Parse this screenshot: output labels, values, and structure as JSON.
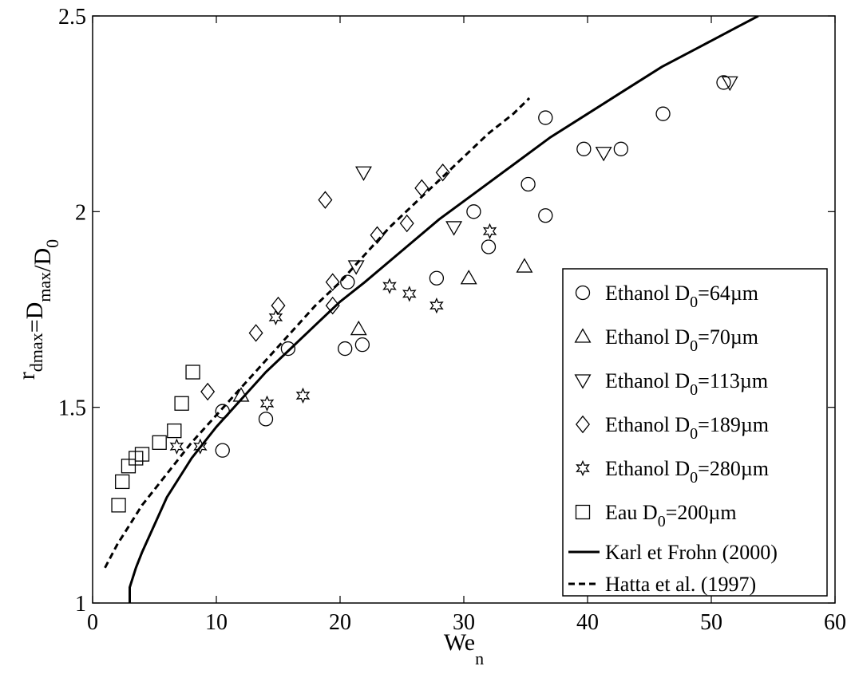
{
  "chart_data": {
    "type": "scatter",
    "x_label": "We",
    "x_label_sub": "n",
    "y_label": {
      "parts": [
        {
          "t": "r",
          "sub": "dmax"
        },
        {
          "t": "=D",
          "sub": "max"
        },
        {
          "t": "/D",
          "sub": "0"
        }
      ]
    },
    "xlim": [
      0,
      60
    ],
    "ylim": [
      1,
      2.5
    ],
    "x_ticks": [
      0,
      10,
      20,
      30,
      40,
      50,
      60
    ],
    "y_ticks": [
      1,
      1.5,
      2,
      2.5
    ],
    "y_tick_labels": [
      "1",
      "1.5",
      "2",
      "2.5"
    ],
    "grid": false,
    "legend_position": "bottom-right",
    "series": [
      {
        "name": "Ethanol D0=64µm",
        "legend": {
          "pre": "Ethanol D",
          "sub": "0",
          "post": "=64µm"
        },
        "marker": "circle",
        "points": [
          [
            10.5,
            1.39
          ],
          [
            10.5,
            1.49
          ],
          [
            14.0,
            1.47
          ],
          [
            15.8,
            1.65
          ],
          [
            20.4,
            1.65
          ],
          [
            20.6,
            1.82
          ],
          [
            21.8,
            1.66
          ],
          [
            27.8,
            1.83
          ],
          [
            30.8,
            2.0
          ],
          [
            32.0,
            1.91
          ],
          [
            35.2,
            2.07
          ],
          [
            36.6,
            1.99
          ],
          [
            36.6,
            2.24
          ],
          [
            39.7,
            2.16
          ],
          [
            42.7,
            2.16
          ],
          [
            46.1,
            2.25
          ],
          [
            51.0,
            2.33
          ]
        ]
      },
      {
        "name": "Ethanol D0=70µm",
        "legend": {
          "pre": "Ethanol D",
          "sub": "0",
          "post": "=70µm"
        },
        "marker": "triangle-up",
        "points": [
          [
            12.0,
            1.53
          ],
          [
            21.5,
            1.7
          ],
          [
            30.4,
            1.83
          ],
          [
            34.9,
            1.86
          ]
        ]
      },
      {
        "name": "Ethanol D0=113µm",
        "legend": {
          "pre": "Ethanol D",
          "sub": "0",
          "post": "=113µm"
        },
        "marker": "triangle-down",
        "points": [
          [
            21.3,
            1.86
          ],
          [
            21.9,
            2.1
          ],
          [
            29.2,
            1.96
          ],
          [
            41.3,
            2.15
          ],
          [
            51.5,
            2.33
          ]
        ]
      },
      {
        "name": "Ethanol D0=189µm",
        "legend": {
          "pre": "Ethanol D",
          "sub": "0",
          "post": "=189µm"
        },
        "marker": "diamond",
        "points": [
          [
            9.3,
            1.54
          ],
          [
            13.2,
            1.69
          ],
          [
            15.0,
            1.76
          ],
          [
            18.8,
            2.03
          ],
          [
            19.4,
            1.76
          ],
          [
            19.4,
            1.82
          ],
          [
            23.0,
            1.94
          ],
          [
            25.4,
            1.97
          ],
          [
            26.6,
            2.06
          ],
          [
            28.3,
            2.1
          ]
        ]
      },
      {
        "name": "Ethanol D0=280µm",
        "legend": {
          "pre": "Ethanol D",
          "sub": "0",
          "post": "=280µm"
        },
        "marker": "star6",
        "points": [
          [
            6.8,
            1.4
          ],
          [
            8.7,
            1.4
          ],
          [
            14.1,
            1.51
          ],
          [
            14.8,
            1.73
          ],
          [
            17.0,
            1.53
          ],
          [
            24.0,
            1.81
          ],
          [
            25.6,
            1.79
          ],
          [
            27.8,
            1.76
          ],
          [
            32.1,
            1.95
          ]
        ]
      },
      {
        "name": "Eau D0=200µm",
        "legend": {
          "pre": "Eau D",
          "sub": "0",
          "post": "=200µm"
        },
        "marker": "square",
        "points": [
          [
            2.1,
            1.25
          ],
          [
            2.4,
            1.31
          ],
          [
            2.9,
            1.35
          ],
          [
            3.5,
            1.37
          ],
          [
            4.0,
            1.38
          ],
          [
            5.4,
            1.41
          ],
          [
            6.6,
            1.44
          ],
          [
            7.2,
            1.51
          ],
          [
            8.1,
            1.59
          ]
        ]
      },
      {
        "name": "Karl et Frohn (2000)",
        "legend": {
          "pre": "Karl et Frohn (2000)"
        },
        "line": "solid",
        "points": [
          [
            3.0,
            1.0
          ],
          [
            3.0,
            1.04
          ],
          [
            3.5,
            1.09
          ],
          [
            4.0,
            1.13
          ],
          [
            5.0,
            1.2
          ],
          [
            6.0,
            1.27
          ],
          [
            7.0,
            1.32
          ],
          [
            8.0,
            1.37
          ],
          [
            10.0,
            1.45
          ],
          [
            12.0,
            1.52
          ],
          [
            14.0,
            1.59
          ],
          [
            16.0,
            1.65
          ],
          [
            18.0,
            1.71
          ],
          [
            20.0,
            1.77
          ],
          [
            22.0,
            1.82
          ],
          [
            25.0,
            1.9
          ],
          [
            28.0,
            1.98
          ],
          [
            31.0,
            2.05
          ],
          [
            34.0,
            2.12
          ],
          [
            37.0,
            2.19
          ],
          [
            40.0,
            2.25
          ],
          [
            43.0,
            2.31
          ],
          [
            46.0,
            2.37
          ],
          [
            49.0,
            2.42
          ],
          [
            52.0,
            2.47
          ],
          [
            53.8,
            2.5
          ]
        ]
      },
      {
        "name": "Hatta et al. (1997)",
        "legend": {
          "pre": "Hatta et al. (1997)"
        },
        "line": "dashed",
        "points": [
          [
            1.0,
            1.09
          ],
          [
            2.0,
            1.15
          ],
          [
            3.0,
            1.2
          ],
          [
            4.0,
            1.25
          ],
          [
            5.0,
            1.29
          ],
          [
            6.0,
            1.33
          ],
          [
            8.0,
            1.41
          ],
          [
            10.0,
            1.48
          ],
          [
            12.0,
            1.55
          ],
          [
            14.0,
            1.62
          ],
          [
            16.0,
            1.69
          ],
          [
            18.0,
            1.76
          ],
          [
            20.0,
            1.82
          ],
          [
            22.0,
            1.89
          ],
          [
            24.0,
            1.96
          ],
          [
            26.0,
            2.02
          ],
          [
            28.0,
            2.08
          ],
          [
            30.0,
            2.14
          ],
          [
            32.0,
            2.2
          ],
          [
            34.0,
            2.25
          ],
          [
            35.3,
            2.29
          ]
        ]
      }
    ]
  }
}
